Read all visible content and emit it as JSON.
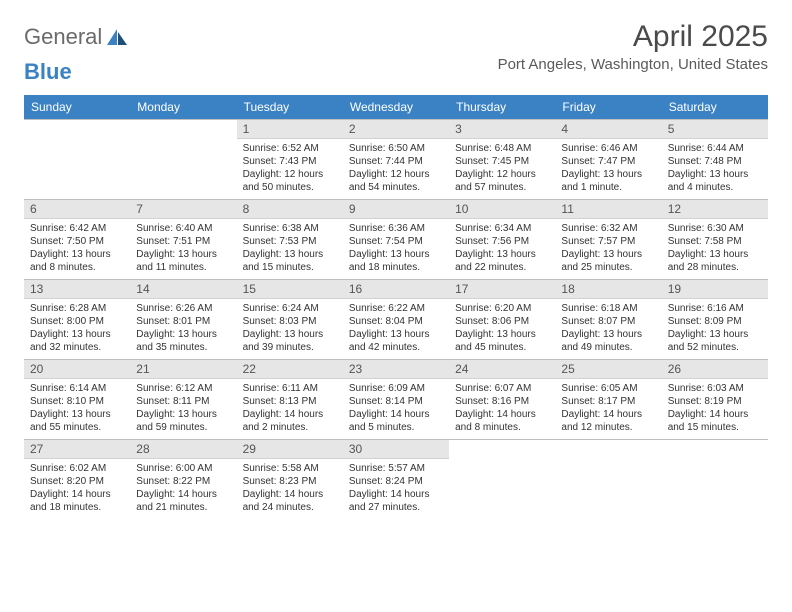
{
  "logo": {
    "text1": "General",
    "text2": "Blue"
  },
  "header": {
    "month_year": "April 2025",
    "location": "Port Angeles, Washington, United States"
  },
  "colors": {
    "header_bg": "#3b82c4",
    "header_text": "#ffffff",
    "daynum_bg": "#e6e6e6",
    "cell_border": "#bfbfbf",
    "logo_gray": "#6b6b6b",
    "logo_blue": "#3b82c4",
    "text": "#333333"
  },
  "day_headers": [
    "Sunday",
    "Monday",
    "Tuesday",
    "Wednesday",
    "Thursday",
    "Friday",
    "Saturday"
  ],
  "weeks": [
    [
      {
        "empty": true
      },
      {
        "empty": true
      },
      {
        "date": "1",
        "sunrise": "Sunrise: 6:52 AM",
        "sunset": "Sunset: 7:43 PM",
        "daylight": "Daylight: 12 hours and 50 minutes."
      },
      {
        "date": "2",
        "sunrise": "Sunrise: 6:50 AM",
        "sunset": "Sunset: 7:44 PM",
        "daylight": "Daylight: 12 hours and 54 minutes."
      },
      {
        "date": "3",
        "sunrise": "Sunrise: 6:48 AM",
        "sunset": "Sunset: 7:45 PM",
        "daylight": "Daylight: 12 hours and 57 minutes."
      },
      {
        "date": "4",
        "sunrise": "Sunrise: 6:46 AM",
        "sunset": "Sunset: 7:47 PM",
        "daylight": "Daylight: 13 hours and 1 minute."
      },
      {
        "date": "5",
        "sunrise": "Sunrise: 6:44 AM",
        "sunset": "Sunset: 7:48 PM",
        "daylight": "Daylight: 13 hours and 4 minutes."
      }
    ],
    [
      {
        "date": "6",
        "sunrise": "Sunrise: 6:42 AM",
        "sunset": "Sunset: 7:50 PM",
        "daylight": "Daylight: 13 hours and 8 minutes."
      },
      {
        "date": "7",
        "sunrise": "Sunrise: 6:40 AM",
        "sunset": "Sunset: 7:51 PM",
        "daylight": "Daylight: 13 hours and 11 minutes."
      },
      {
        "date": "8",
        "sunrise": "Sunrise: 6:38 AM",
        "sunset": "Sunset: 7:53 PM",
        "daylight": "Daylight: 13 hours and 15 minutes."
      },
      {
        "date": "9",
        "sunrise": "Sunrise: 6:36 AM",
        "sunset": "Sunset: 7:54 PM",
        "daylight": "Daylight: 13 hours and 18 minutes."
      },
      {
        "date": "10",
        "sunrise": "Sunrise: 6:34 AM",
        "sunset": "Sunset: 7:56 PM",
        "daylight": "Daylight: 13 hours and 22 minutes."
      },
      {
        "date": "11",
        "sunrise": "Sunrise: 6:32 AM",
        "sunset": "Sunset: 7:57 PM",
        "daylight": "Daylight: 13 hours and 25 minutes."
      },
      {
        "date": "12",
        "sunrise": "Sunrise: 6:30 AM",
        "sunset": "Sunset: 7:58 PM",
        "daylight": "Daylight: 13 hours and 28 minutes."
      }
    ],
    [
      {
        "date": "13",
        "sunrise": "Sunrise: 6:28 AM",
        "sunset": "Sunset: 8:00 PM",
        "daylight": "Daylight: 13 hours and 32 minutes."
      },
      {
        "date": "14",
        "sunrise": "Sunrise: 6:26 AM",
        "sunset": "Sunset: 8:01 PM",
        "daylight": "Daylight: 13 hours and 35 minutes."
      },
      {
        "date": "15",
        "sunrise": "Sunrise: 6:24 AM",
        "sunset": "Sunset: 8:03 PM",
        "daylight": "Daylight: 13 hours and 39 minutes."
      },
      {
        "date": "16",
        "sunrise": "Sunrise: 6:22 AM",
        "sunset": "Sunset: 8:04 PM",
        "daylight": "Daylight: 13 hours and 42 minutes."
      },
      {
        "date": "17",
        "sunrise": "Sunrise: 6:20 AM",
        "sunset": "Sunset: 8:06 PM",
        "daylight": "Daylight: 13 hours and 45 minutes."
      },
      {
        "date": "18",
        "sunrise": "Sunrise: 6:18 AM",
        "sunset": "Sunset: 8:07 PM",
        "daylight": "Daylight: 13 hours and 49 minutes."
      },
      {
        "date": "19",
        "sunrise": "Sunrise: 6:16 AM",
        "sunset": "Sunset: 8:09 PM",
        "daylight": "Daylight: 13 hours and 52 minutes."
      }
    ],
    [
      {
        "date": "20",
        "sunrise": "Sunrise: 6:14 AM",
        "sunset": "Sunset: 8:10 PM",
        "daylight": "Daylight: 13 hours and 55 minutes."
      },
      {
        "date": "21",
        "sunrise": "Sunrise: 6:12 AM",
        "sunset": "Sunset: 8:11 PM",
        "daylight": "Daylight: 13 hours and 59 minutes."
      },
      {
        "date": "22",
        "sunrise": "Sunrise: 6:11 AM",
        "sunset": "Sunset: 8:13 PM",
        "daylight": "Daylight: 14 hours and 2 minutes."
      },
      {
        "date": "23",
        "sunrise": "Sunrise: 6:09 AM",
        "sunset": "Sunset: 8:14 PM",
        "daylight": "Daylight: 14 hours and 5 minutes."
      },
      {
        "date": "24",
        "sunrise": "Sunrise: 6:07 AM",
        "sunset": "Sunset: 8:16 PM",
        "daylight": "Daylight: 14 hours and 8 minutes."
      },
      {
        "date": "25",
        "sunrise": "Sunrise: 6:05 AM",
        "sunset": "Sunset: 8:17 PM",
        "daylight": "Daylight: 14 hours and 12 minutes."
      },
      {
        "date": "26",
        "sunrise": "Sunrise: 6:03 AM",
        "sunset": "Sunset: 8:19 PM",
        "daylight": "Daylight: 14 hours and 15 minutes."
      }
    ],
    [
      {
        "date": "27",
        "sunrise": "Sunrise: 6:02 AM",
        "sunset": "Sunset: 8:20 PM",
        "daylight": "Daylight: 14 hours and 18 minutes."
      },
      {
        "date": "28",
        "sunrise": "Sunrise: 6:00 AM",
        "sunset": "Sunset: 8:22 PM",
        "daylight": "Daylight: 14 hours and 21 minutes."
      },
      {
        "date": "29",
        "sunrise": "Sunrise: 5:58 AM",
        "sunset": "Sunset: 8:23 PM",
        "daylight": "Daylight: 14 hours and 24 minutes."
      },
      {
        "date": "30",
        "sunrise": "Sunrise: 5:57 AM",
        "sunset": "Sunset: 8:24 PM",
        "daylight": "Daylight: 14 hours and 27 minutes."
      },
      {
        "empty": true
      },
      {
        "empty": true
      },
      {
        "empty": true
      }
    ]
  ]
}
